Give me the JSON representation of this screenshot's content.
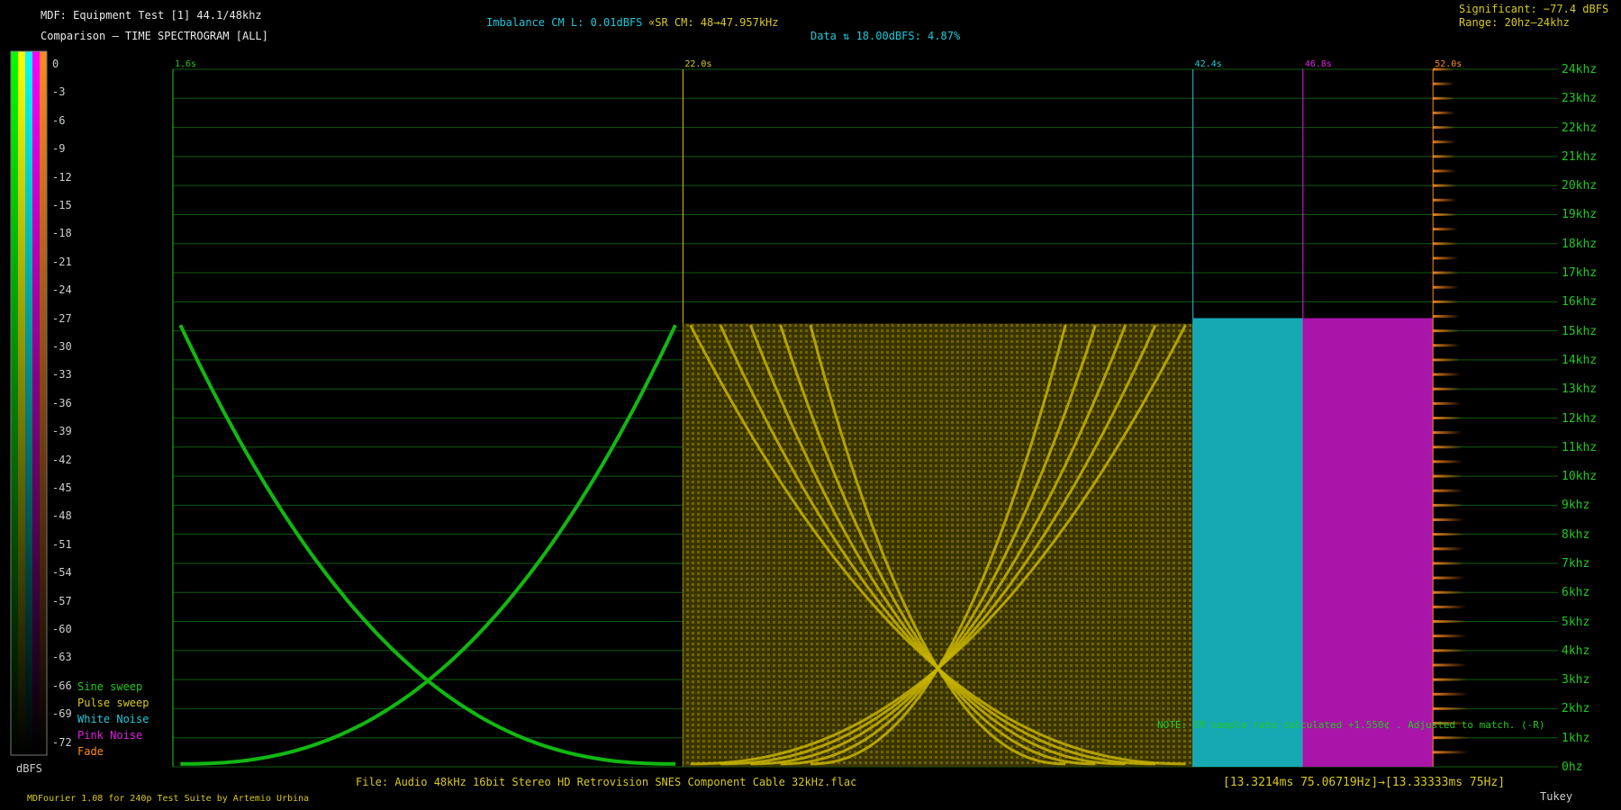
{
  "header": {
    "title": "MDF: Equipment Test [1] 44.1/48khz",
    "subtitle": "Comparison – TIME SPECTROGRAM [ALL]",
    "imbalance": "Imbalance CM L: 0.01dBFS",
    "sample_rate": "∝SR CM: 48→47.957kHz",
    "data_info": "Data ⇅ 18.00dBFS: 4.87%",
    "significant": "Significant: −77.4 dBFS",
    "range": "Range: 20hz–24khz"
  },
  "scale": {
    "unit_label": "dBFS",
    "ticks": [
      "0",
      "-3",
      "-6",
      "-9",
      "-12",
      "-15",
      "-18",
      "-21",
      "-24",
      "-27",
      "-30",
      "-33",
      "-36",
      "-39",
      "-42",
      "-45",
      "-48",
      "-51",
      "-54",
      "-57",
      "-60",
      "-63",
      "-66",
      "-69",
      "-72"
    ],
    "columns": [
      {
        "name": "green",
        "top": "#00ff00"
      },
      {
        "name": "yellow",
        "top": "#ffff00"
      },
      {
        "name": "cyan",
        "top": "#00ffff"
      },
      {
        "name": "magenta",
        "top": "#ff00ff"
      },
      {
        "name": "orange",
        "top": "#ff8a1e"
      }
    ]
  },
  "legend": [
    {
      "label": "Sine sweep",
      "color": "#20c820"
    },
    {
      "label": "Pulse sweep",
      "color": "#d8c820"
    },
    {
      "label": "White Noise",
      "color": "#20c8d8"
    },
    {
      "label": "Pink Noise",
      "color": "#e020e0"
    },
    {
      "label": "Fade",
      "color": "#ff8a1e"
    }
  ],
  "chart_data": {
    "type": "heatmap",
    "title": "TIME SPECTROGRAM [ALL]",
    "y_unit": "Hz",
    "ylim": [
      0,
      24000
    ],
    "y_ticks": [
      "24khz",
      "23khz",
      "22khz",
      "21khz",
      "20khz",
      "19khz",
      "18khz",
      "17khz",
      "16khz",
      "15khz",
      "14khz",
      "13khz",
      "12khz",
      "11khz",
      "10khz",
      "9khz",
      "8khz",
      "7khz",
      "6khz",
      "5khz",
      "4khz",
      "3khz",
      "2khz",
      "1khz",
      "0hz"
    ],
    "xlim": [
      1.6,
      57.0
    ],
    "segments": [
      {
        "label": "1.6s",
        "start": 1.6,
        "end": 22.0,
        "name": "Sine sweep",
        "color": "#20c820"
      },
      {
        "label": "22.0s",
        "start": 22.0,
        "end": 42.4,
        "name": "Pulse sweep",
        "color": "#d8c820"
      },
      {
        "label": "42.4s",
        "start": 42.4,
        "end": 46.8,
        "name": "White Noise",
        "color": "#20c8d8"
      },
      {
        "label": "46.8s",
        "start": 46.8,
        "end": 52.0,
        "name": "Pink Noise",
        "color": "#e020e0"
      },
      {
        "label": "52.0s",
        "start": 52.0,
        "end": 57.0,
        "name": "Fade",
        "color": "#ff8a1e"
      }
    ],
    "cutoff_hz": 15500,
    "grid": true
  },
  "footer": {
    "file": "File: Audio   48kHz 16bit Stereo HD Retrovision SNES Component Cable 32kHz.flac",
    "frame_info": "[13.3214ms 75.06719Hz]→[13.33333ms 75Hz]",
    "credit": "MDFourier 1.08 for 240p Test Suite by Artemio Urbina",
    "window": "Tukey"
  },
  "note": "NOTE: CM sample rate calculated +1.550¢ . Adjusted to match. (-R)"
}
